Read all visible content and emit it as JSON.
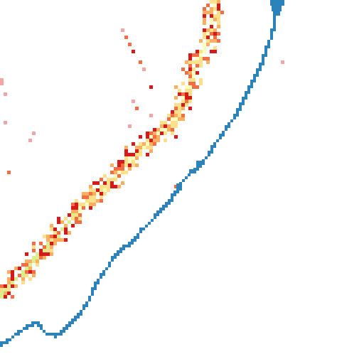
{
  "map": {
    "background": "#ffffff",
    "colors": {
      "blue_line": "#2b83ba",
      "red": "#d7191c",
      "orange": "#fdae61",
      "orange_dark": "#f46d43",
      "yellow": "#fee08b",
      "light_yellow": "#ffffbf",
      "light_green": "#d9ef8b",
      "pink": "#f4a6a6"
    },
    "features": [
      {
        "name": "blue-coastline",
        "kind": "pixel-line",
        "color_key": "blue_line"
      },
      {
        "name": "heat-band",
        "kind": "pixel-scatter",
        "color_keys": [
          "red",
          "orange_dark",
          "orange",
          "yellow",
          "light_yellow",
          "light_green",
          "pink"
        ]
      }
    ]
  }
}
